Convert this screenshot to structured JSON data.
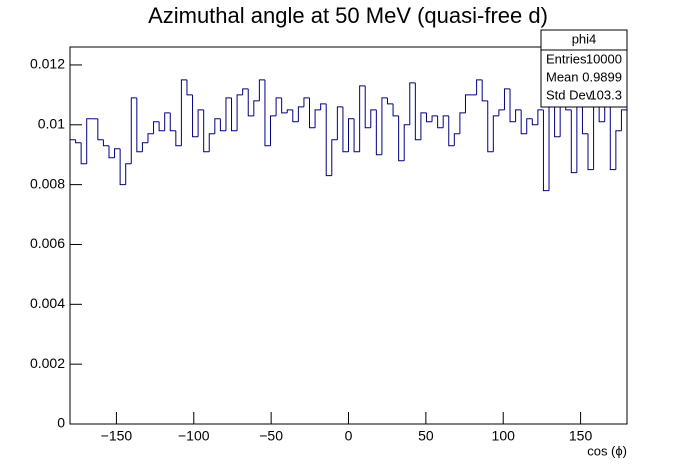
{
  "chart_data": {
    "type": "histogram",
    "title": "Azimuthal angle at 50 MeV (quasi-free d)",
    "x_label": "cos (ϕ)",
    "color": "#000080",
    "bins": [
      -180,
      -176.4,
      -172.8,
      -169.2,
      -165.6,
      -162,
      -158.4,
      -154.8,
      -151.2,
      -147.6,
      -144,
      -140.4,
      -136.8,
      -133.2,
      -129.6,
      -126,
      -122.4,
      -118.8,
      -115.2,
      -111.6,
      -108,
      -104.4,
      -100.8,
      -97.2,
      -93.6,
      -90,
      -86.4,
      -82.8,
      -79.2,
      -75.6,
      -72,
      -68.4,
      -64.8,
      -61.2,
      -57.6,
      -54,
      -50.4,
      -46.8,
      -43.2,
      -39.6,
      -36,
      -32.4,
      -28.8,
      -25.2,
      -21.6,
      -18,
      -14.4,
      -10.8,
      -7.2,
      -3.6,
      0,
      3.6,
      7.2,
      10.8,
      14.4,
      18,
      21.6,
      25.2,
      28.8,
      32.4,
      36,
      39.6,
      43.2,
      46.8,
      50.4,
      54,
      57.6,
      61.2,
      64.8,
      68.4,
      72,
      75.6,
      79.2,
      82.8,
      86.4,
      90,
      93.6,
      97.2,
      100.8,
      104.4,
      108,
      111.6,
      115.2,
      118.8,
      122.4,
      126,
      129.6,
      133.2,
      136.8,
      140.4,
      144,
      147.6,
      151.2,
      154.8,
      158.4,
      162,
      165.6,
      169.2,
      172.8,
      176.4,
      180
    ],
    "values": [
      0.0095,
      0.0094,
      0.0087,
      0.0102,
      0.0102,
      0.0095,
      0.0093,
      0.0089,
      0.0092,
      0.008,
      0.0087,
      0.0109,
      0.0091,
      0.0094,
      0.0097,
      0.0101,
      0.0098,
      0.0104,
      0.0098,
      0.0093,
      0.0115,
      0.011,
      0.0096,
      0.0105,
      0.0091,
      0.0097,
      0.0102,
      0.0098,
      0.0109,
      0.0098,
      0.011,
      0.0112,
      0.0103,
      0.0108,
      0.0115,
      0.0093,
      0.0103,
      0.0109,
      0.0104,
      0.0105,
      0.0101,
      0.0106,
      0.0109,
      0.0099,
      0.0105,
      0.0107,
      0.0083,
      0.0095,
      0.0106,
      0.0091,
      0.0102,
      0.0091,
      0.0113,
      0.0099,
      0.0105,
      0.009,
      0.0109,
      0.0107,
      0.0103,
      0.0088,
      0.01,
      0.0114,
      0.0095,
      0.0104,
      0.0101,
      0.0103,
      0.0099,
      0.0103,
      0.0093,
      0.0097,
      0.0104,
      0.011,
      0.011,
      0.0115,
      0.0108,
      0.0091,
      0.0103,
      0.0105,
      0.0112,
      0.0101,
      0.0105,
      0.0097,
      0.0102,
      0.01,
      0.0105,
      0.0078,
      0.0112,
      0.0096,
      0.0108,
      0.0105,
      0.0084,
      0.011,
      0.0097,
      0.0085,
      0.0108,
      0.0101,
      0.0112,
      0.0085,
      0.0098,
      0.0105
    ],
    "xlim": [
      -180,
      180
    ],
    "xticks": [
      {
        "value": -150,
        "label": "−150"
      },
      {
        "value": -100,
        "label": "−100"
      },
      {
        "value": -50,
        "label": "−50"
      },
      0,
      50,
      100,
      150
    ],
    "ylim": [
      0,
      0.0126
    ],
    "yticks": [
      0,
      0.002,
      0.004,
      0.006,
      0.008,
      0.01,
      0.012
    ],
    "stats": {
      "title": "phi4",
      "rows": [
        {
          "label": "Entries",
          "value": 10000
        },
        {
          "label": "Mean",
          "value": 0.9899
        },
        {
          "label": "Std Dev",
          "value": 103.3
        }
      ]
    }
  }
}
